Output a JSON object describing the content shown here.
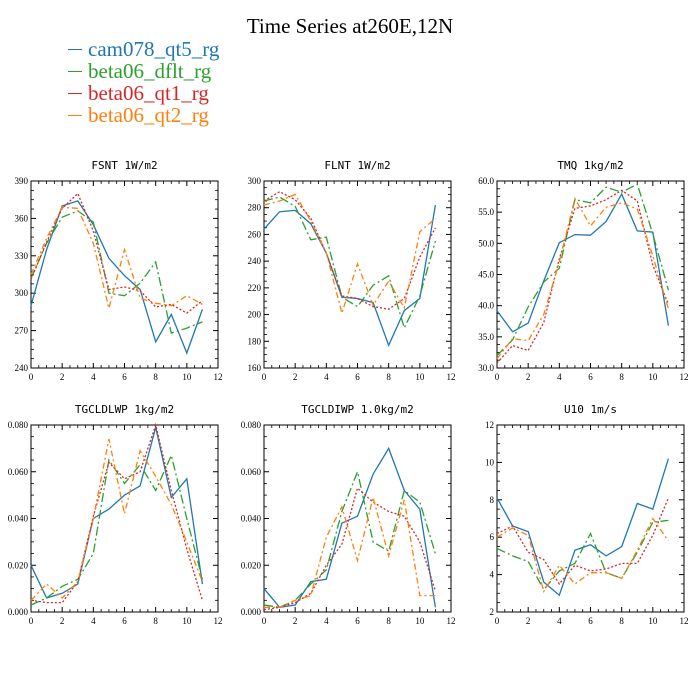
{
  "figure": {
    "title": "Time Series at260E,12N"
  },
  "legend": [
    {
      "name": "cam078_qt5_rg",
      "color": "#1f77b4",
      "dash": ""
    },
    {
      "name": "beta06_dflt_rg",
      "color": "#2ca02c",
      "dash": "9,3,2,3"
    },
    {
      "name": "beta06_qt1_rg",
      "color": "#d62728",
      "dash": "2,2"
    },
    {
      "name": "beta06_qt2_rg",
      "color": "#ff7f0e",
      "dash": "6,3,2,3"
    }
  ],
  "chart_data": [
    {
      "type": "line",
      "title": "FSNT  1W/m2",
      "x": [
        0,
        1,
        2,
        3,
        4,
        5,
        6,
        7,
        8,
        9,
        10,
        11
      ],
      "xlim": [
        0,
        12
      ],
      "ylim": [
        240,
        390
      ],
      "xticks": [
        0,
        2,
        4,
        6,
        8,
        10,
        12
      ],
      "yticks": [
        "240",
        "270",
        "300",
        "330",
        "360",
        "390"
      ],
      "series": [
        {
          "name": "cam078_qt5_rg",
          "values": [
            290,
            335,
            370,
            374,
            355,
            328,
            314,
            303,
            261,
            283,
            252,
            287
          ]
        },
        {
          "name": "beta06_dflt_rg",
          "values": [
            312,
            340,
            361,
            366,
            357,
            300,
            298,
            308,
            325,
            268,
            272,
            277
          ]
        },
        {
          "name": "beta06_qt1_rg",
          "values": [
            311,
            341,
            368,
            380,
            350,
            303,
            305,
            302,
            289,
            291,
            284,
            294
          ]
        },
        {
          "name": "beta06_qt2_rg",
          "values": [
            315,
            344,
            369,
            368,
            340,
            288,
            335,
            296,
            292,
            290,
            298,
            291
          ]
        }
      ]
    },
    {
      "type": "line",
      "title": "FLNT  1W/m2",
      "x": [
        0,
        1,
        2,
        3,
        4,
        5,
        6,
        7,
        8,
        9,
        10,
        11
      ],
      "xlim": [
        0,
        12
      ],
      "ylim": [
        160,
        300
      ],
      "xticks": [
        0,
        2,
        4,
        6,
        8,
        10,
        12
      ],
      "yticks": [
        "160",
        "180",
        "200",
        "220",
        "240",
        "260",
        "280",
        "300"
      ],
      "series": [
        {
          "name": "cam078_qt5_rg",
          "values": [
            264,
            277,
            278,
            268,
            246,
            213,
            212,
            209,
            177,
            203,
            212,
            282
          ]
        },
        {
          "name": "beta06_dflt_rg",
          "values": [
            285,
            288,
            281,
            256,
            258,
            213,
            206,
            222,
            229,
            190,
            214,
            255
          ]
        },
        {
          "name": "beta06_qt1_rg",
          "values": [
            285,
            292,
            286,
            272,
            246,
            214,
            212,
            206,
            204,
            212,
            243,
            265
          ]
        },
        {
          "name": "beta06_qt2_rg",
          "values": [
            282,
            285,
            290,
            270,
            246,
            201,
            238,
            207,
            225,
            205,
            262,
            272
          ]
        }
      ]
    },
    {
      "type": "line",
      "title": "TMQ  1kg/m2",
      "x": [
        0,
        1,
        2,
        3,
        4,
        5,
        6,
        7,
        8,
        9,
        10,
        11
      ],
      "xlim": [
        0,
        12
      ],
      "ylim": [
        30,
        60
      ],
      "xticks": [
        0,
        2,
        4,
        6,
        8,
        10,
        12
      ],
      "yticks": [
        "30.0",
        "35.0",
        "40.0",
        "45.0",
        "50.0",
        "55.0",
        "60.0"
      ],
      "series": [
        {
          "name": "cam078_qt5_rg",
          "values": [
            39.2,
            35.8,
            37.2,
            44.0,
            50.1,
            51.4,
            51.3,
            53.5,
            57.9,
            52.0,
            51.8,
            36.8
          ]
        },
        {
          "name": "beta06_dflt_rg",
          "values": [
            32.0,
            34.5,
            39.8,
            43.8,
            46.0,
            57.0,
            56.5,
            59.0,
            58.2,
            59.5,
            51.5,
            42.5
          ]
        },
        {
          "name": "beta06_qt1_rg",
          "values": [
            30.8,
            33.6,
            32.8,
            37.3,
            47.5,
            55.6,
            56.0,
            57.0,
            58.5,
            56.8,
            46.5,
            40.2
          ]
        },
        {
          "name": "beta06_qt2_rg",
          "values": [
            31.5,
            34.7,
            34.4,
            38.6,
            47.0,
            57.2,
            52.8,
            55.8,
            56.5,
            55.5,
            48.0,
            39.5
          ]
        }
      ]
    },
    {
      "type": "line",
      "title": "TGCLDLWP  1kg/m2",
      "x": [
        0,
        1,
        2,
        3,
        4,
        5,
        6,
        7,
        8,
        9,
        10,
        11
      ],
      "xlim": [
        0,
        12
      ],
      "ylim": [
        0,
        0.08
      ],
      "xticks": [
        0,
        2,
        4,
        6,
        8,
        10,
        12
      ],
      "yticks": [
        "0.000",
        "0.020",
        "0.040",
        "0.060",
        "0.080"
      ],
      "series": [
        {
          "name": "cam078_qt5_rg",
          "values": [
            0.02,
            0.006,
            0.008,
            0.012,
            0.04,
            0.044,
            0.05,
            0.054,
            0.079,
            0.049,
            0.057,
            0.012
          ]
        },
        {
          "name": "beta06_dflt_rg",
          "values": [
            0.003,
            0.006,
            0.011,
            0.014,
            0.025,
            0.065,
            0.055,
            0.063,
            0.052,
            0.067,
            0.04,
            0.014
          ]
        },
        {
          "name": "beta06_qt1_rg",
          "values": [
            0.005,
            0.004,
            0.004,
            0.013,
            0.041,
            0.064,
            0.057,
            0.06,
            0.08,
            0.052,
            0.027,
            0.005
          ]
        },
        {
          "name": "beta06_qt2_rg",
          "values": [
            0.005,
            0.012,
            0.006,
            0.013,
            0.04,
            0.074,
            0.042,
            0.069,
            0.058,
            0.046,
            0.03,
            0.013
          ]
        }
      ]
    },
    {
      "type": "line",
      "title": "TGCLDIWP  1.0kg/m2",
      "x": [
        0,
        1,
        2,
        3,
        4,
        5,
        6,
        7,
        8,
        9,
        10,
        11
      ],
      "xlim": [
        0,
        12
      ],
      "ylim": [
        0,
        0.08
      ],
      "xticks": [
        0,
        2,
        4,
        6,
        8,
        10,
        12
      ],
      "yticks": [
        "0.000",
        "0.020",
        "0.040",
        "0.060",
        "0.080"
      ],
      "series": [
        {
          "name": "cam078_qt5_rg",
          "values": [
            0.01,
            0.002,
            0.003,
            0.013,
            0.014,
            0.038,
            0.041,
            0.059,
            0.07,
            0.052,
            0.044,
            0.002
          ]
        },
        {
          "name": "beta06_dflt_rg",
          "values": [
            0.003,
            0.002,
            0.005,
            0.012,
            0.018,
            0.043,
            0.06,
            0.03,
            0.026,
            0.052,
            0.047,
            0.025
          ]
        },
        {
          "name": "beta06_qt1_rg",
          "values": [
            0.001,
            0.002,
            0.004,
            0.008,
            0.02,
            0.029,
            0.053,
            0.047,
            0.043,
            0.041,
            0.03,
            0.009
          ]
        },
        {
          "name": "beta06_qt2_rg",
          "values": [
            0.002,
            0.002,
            0.005,
            0.007,
            0.032,
            0.045,
            0.022,
            0.049,
            0.024,
            0.048,
            0.007,
            0.007
          ]
        }
      ]
    },
    {
      "type": "line",
      "title": "U10  1m/s",
      "x": [
        0,
        1,
        2,
        3,
        4,
        5,
        6,
        7,
        8,
        9,
        10,
        11
      ],
      "xlim": [
        0,
        12
      ],
      "ylim": [
        2,
        12
      ],
      "xticks": [
        0,
        2,
        4,
        6,
        8,
        10,
        12
      ],
      "yticks": [
        "2",
        "4",
        "6",
        "8",
        "10",
        "12"
      ],
      "series": [
        {
          "name": "cam078_qt5_rg",
          "values": [
            8.1,
            6.6,
            6.3,
            3.6,
            2.9,
            5.3,
            5.6,
            5.0,
            5.5,
            7.8,
            7.5,
            10.2
          ]
        },
        {
          "name": "beta06_dflt_rg",
          "values": [
            5.4,
            5.0,
            4.7,
            3.2,
            4.2,
            4.6,
            6.2,
            4.1,
            3.8,
            5.2,
            6.8,
            6.9
          ]
        },
        {
          "name": "beta06_qt1_rg",
          "values": [
            6.2,
            6.6,
            5.2,
            4.8,
            3.5,
            4.5,
            4.2,
            4.3,
            4.6,
            4.6,
            6.1,
            8.1
          ]
        },
        {
          "name": "beta06_qt2_rg",
          "values": [
            6.0,
            6.5,
            6.1,
            3.1,
            4.5,
            3.5,
            4.1,
            4.1,
            3.8,
            5.3,
            7.0,
            5.8
          ]
        }
      ]
    }
  ]
}
